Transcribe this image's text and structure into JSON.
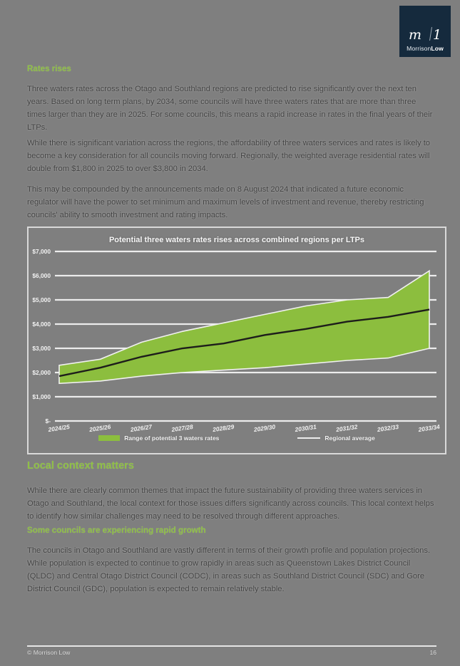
{
  "colors": {
    "page_background": "#7f7f7f",
    "heading_green": "#8fc045",
    "band_green": "#8cbe3e",
    "average_line_black": "#1d1d1b",
    "logo_navy": "#152a3d",
    "chart_text": "#f2f2f2"
  },
  "logo": {
    "name_regular": "Morrison",
    "name_bold": "Low"
  },
  "sections": {
    "rates_rises": {
      "heading": "Rates rises",
      "p1": "Three waters rates across the Otago and Southland regions are predicted to rise significantly over the next ten years. Based on long term plans, by 2034, some councils will have three waters rates that are more than three times larger than they are in 2025.  For some councils, this means a rapid increase in rates in the final years of their LTPs.",
      "p2": "While there is significant variation across the regions, the affordability of three waters services and rates is likely to become a key consideration for all councils moving forward.  Regionally, the weighted average residential rates will double from $1,800 in 2025 to over $3,800 in 2034.",
      "p3": "This may be compounded by the announcements made on 8 August 2024 that indicated a future economic regulator will have the power to set minimum and maximum levels of investment and revenue, thereby restricting councils' ability to smooth investment and rating impacts."
    },
    "local_context": {
      "heading": "Local context matters",
      "p1": "While there are clearly common themes that impact the future sustainability of providing three waters services in Otago and Southland, the local context for those issues differs significantly across councils.  This local context helps to identify how similar challenges may need to be resolved through different approaches."
    },
    "rapid_growth": {
      "heading": "Some councils are experiencing rapid growth",
      "p1": "The councils in Otago and Southland are vastly different in terms of their growth profile and population projections.  While population is expected to continue to grow rapidly in areas such as Queenstown Lakes District Council (QLDC) and Central Otago District Council (CODC), in areas such as Southland District Council (SDC) and Gore District Council (GDC), population is expected to remain relatively stable."
    }
  },
  "chart_data": {
    "type": "area",
    "title": "Potential three waters rates rises across combined regions per LTPs",
    "categories": [
      "2024/25",
      "2025/26",
      "2026/27",
      "2027/28",
      "2028/29",
      "2029/30",
      "2030/31",
      "2031/32",
      "2032/33",
      "2033/34"
    ],
    "series": [
      {
        "name": "Range of potential 3 waters rates",
        "kind": "band",
        "upper": [
          2300,
          2550,
          3250,
          3700,
          4050,
          4400,
          4750,
          5000,
          5100,
          6200
        ],
        "lower": [
          1550,
          1650,
          1850,
          2000,
          2100,
          2200,
          2350,
          2500,
          2600,
          3000
        ],
        "color": "#8cbe3e"
      },
      {
        "name": "Regional average",
        "kind": "line",
        "values": [
          1850,
          2200,
          2650,
          3000,
          3200,
          3550,
          3800,
          4100,
          4300,
          4600
        ],
        "color": "#1d1d1b"
      }
    ],
    "ylim": [
      0,
      7000
    ],
    "ytick_step": 1000,
    "ytick_labels": [
      "$-",
      "$1,000",
      "$2,000",
      "$3,000",
      "$4,000",
      "$5,000",
      "$6,000",
      "$7,000"
    ],
    "grid": true,
    "legend_position": "bottom"
  },
  "footer": {
    "copyright": "© Morrison Low",
    "page_number": "16"
  }
}
